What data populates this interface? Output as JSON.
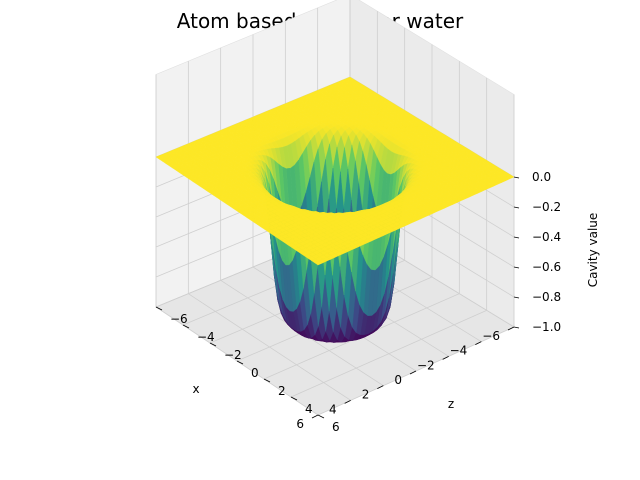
{
  "chart_data": {
    "type": "surface3d",
    "title": "Atom based Cavity for water",
    "xlabel": "x",
    "ylabel": "z",
    "zlabel": "Cavity value",
    "xlim": [
      -6,
      6
    ],
    "ylim": [
      -6,
      6
    ],
    "zlim": [
      -1.0,
      0.0
    ],
    "x_ticks": [
      "6",
      "4",
      "2",
      "0",
      "−2",
      "−4",
      "−6"
    ],
    "y_ticks": [
      "6",
      "4",
      "2",
      "0",
      "−2",
      "−4",
      "−6"
    ],
    "z_ticks": [
      "0.0",
      "−0.2",
      "−0.4",
      "−0.6",
      "−0.8",
      "−1.0"
    ],
    "colormap": "viridis",
    "colors": [
      "#440154",
      "#3b528b",
      "#21918c",
      "#5ec962",
      "#fde725"
    ],
    "surface": {
      "description_values": "cavity value is 0 outside the molecular cavity and about -1 inside",
      "cavity_radius": 3.0,
      "inside_value": -1.0,
      "outside_value": 0.0
    },
    "grid": true
  }
}
